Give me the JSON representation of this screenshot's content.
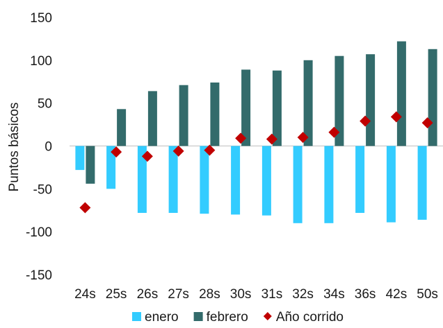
{
  "chart_data": {
    "type": "bar",
    "ylabel": "Puntos básicos",
    "xlabel": "",
    "ylim": [
      -150,
      150
    ],
    "yticks": [
      150,
      100,
      50,
      0,
      -50,
      -100,
      -150
    ],
    "categories": [
      "24s",
      "25s",
      "26s",
      "27s",
      "28s",
      "30s",
      "31s",
      "32s",
      "34s",
      "36s",
      "42s",
      "50s"
    ],
    "series": [
      {
        "name": "enero",
        "kind": "bar",
        "color": "#33ccff",
        "values": [
          -28,
          -50,
          -78,
          -78,
          -79,
          -80,
          -81,
          -90,
          -90,
          -78,
          -89,
          -86
        ]
      },
      {
        "name": "febrero",
        "kind": "bar",
        "color": "#336b6b",
        "values": [
          -44,
          43,
          64,
          71,
          74,
          89,
          88,
          100,
          105,
          107,
          122,
          113
        ]
      },
      {
        "name": "Año corrido",
        "kind": "marker",
        "color": "#c00000",
        "values": [
          -72,
          -7,
          -12,
          -6,
          -5,
          9,
          8,
          10,
          16,
          29,
          34,
          27
        ]
      }
    ],
    "legend_position": "bottom",
    "grid": false
  }
}
